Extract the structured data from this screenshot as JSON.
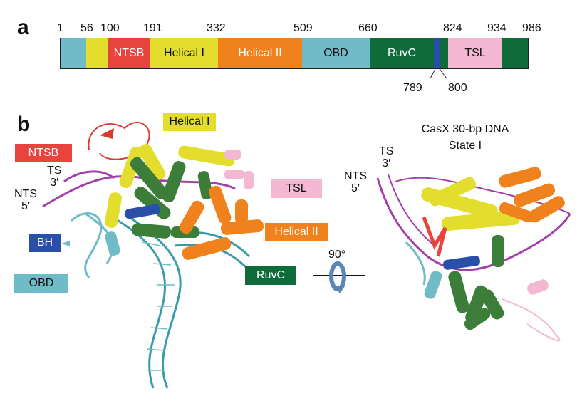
{
  "panel_a": {
    "letter": "a",
    "ticks_top": [
      "1",
      "56",
      "100",
      "191",
      "332",
      "509",
      "660",
      "824",
      "934",
      "986"
    ],
    "ticks_bottom": [
      "789",
      "800"
    ],
    "segments": [
      {
        "label": "",
        "color": "#6fbcc8"
      },
      {
        "label": "",
        "color": "#e3de2e"
      },
      {
        "label": "NTSB",
        "color": "#e8433d"
      },
      {
        "label": "Helical I",
        "color": "#e3de2e"
      },
      {
        "label": "Helical II",
        "color": "#f0821e"
      },
      {
        "label": "OBD",
        "color": "#6fbcc8"
      },
      {
        "label": "RuvC",
        "color": "#0f6b3a"
      },
      {
        "label": "",
        "color": "#0f6b3a"
      },
      {
        "label": "",
        "color": "#2a4fa8"
      },
      {
        "label": "",
        "color": "#0f6b3a"
      },
      {
        "label": "TSL",
        "color": "#f4b8d2"
      },
      {
        "label": "",
        "color": "#0f6b3a"
      }
    ]
  },
  "panel_b": {
    "letter": "b",
    "labels": {
      "ntsb": "NTSB",
      "helical_i": "Helical I",
      "tsl": "TSL",
      "helical_ii": "Helical II",
      "ruvc": "RuvC",
      "bh": "BH",
      "obd": "OBD"
    },
    "label_colors": {
      "ntsb": "#e8433d",
      "helical_i": "#e3de2e",
      "tsl": "#f4b8d2",
      "helical_ii": "#f0821e",
      "ruvc": "#0f6b3a",
      "bh": "#2a4fa8",
      "obd": "#6fbcc8"
    },
    "left_strands": {
      "ts": "TS",
      "ts_end": "3′",
      "nts": "NTS",
      "nts_end": "5′"
    },
    "right_strands": {
      "ts": "TS",
      "ts_end": "3′",
      "nts": "NTS",
      "nts_end": "5′"
    },
    "rotation": "90°",
    "title_line1": "CasX 30-bp DNA",
    "title_line2": "State I"
  }
}
